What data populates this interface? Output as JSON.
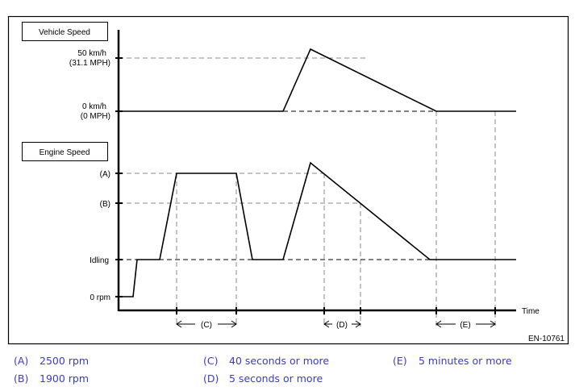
{
  "diagram": {
    "vehicle_speed_title": "Vehicle Speed",
    "engine_speed_title": "Engine Speed",
    "vehicle_ticks": [
      {
        "line1": "50 km/h",
        "line2": "(31.1 MPH)"
      },
      {
        "line1": "0  km/h",
        "line2": "(0 MPH)"
      }
    ],
    "engine_ticks": [
      "(A)",
      "(B)",
      "Idling",
      "0 rpm"
    ],
    "time_label": "Time",
    "intervals": [
      "(C)",
      "(D)",
      "(E)"
    ],
    "figure_id": "EN-10761"
  },
  "legend": [
    {
      "key": "(A)",
      "value": "2500 rpm"
    },
    {
      "key": "(B)",
      "value": "1900 rpm"
    },
    {
      "key": "(C)",
      "value": "40 seconds or more"
    },
    {
      "key": "(D)",
      "value": "5 seconds or more"
    },
    {
      "key": "(E)",
      "value": "5 minutes or more"
    }
  ],
  "colors": {
    "legend_text": "#3a3acc",
    "line": "#000000",
    "guide": "#888888"
  }
}
